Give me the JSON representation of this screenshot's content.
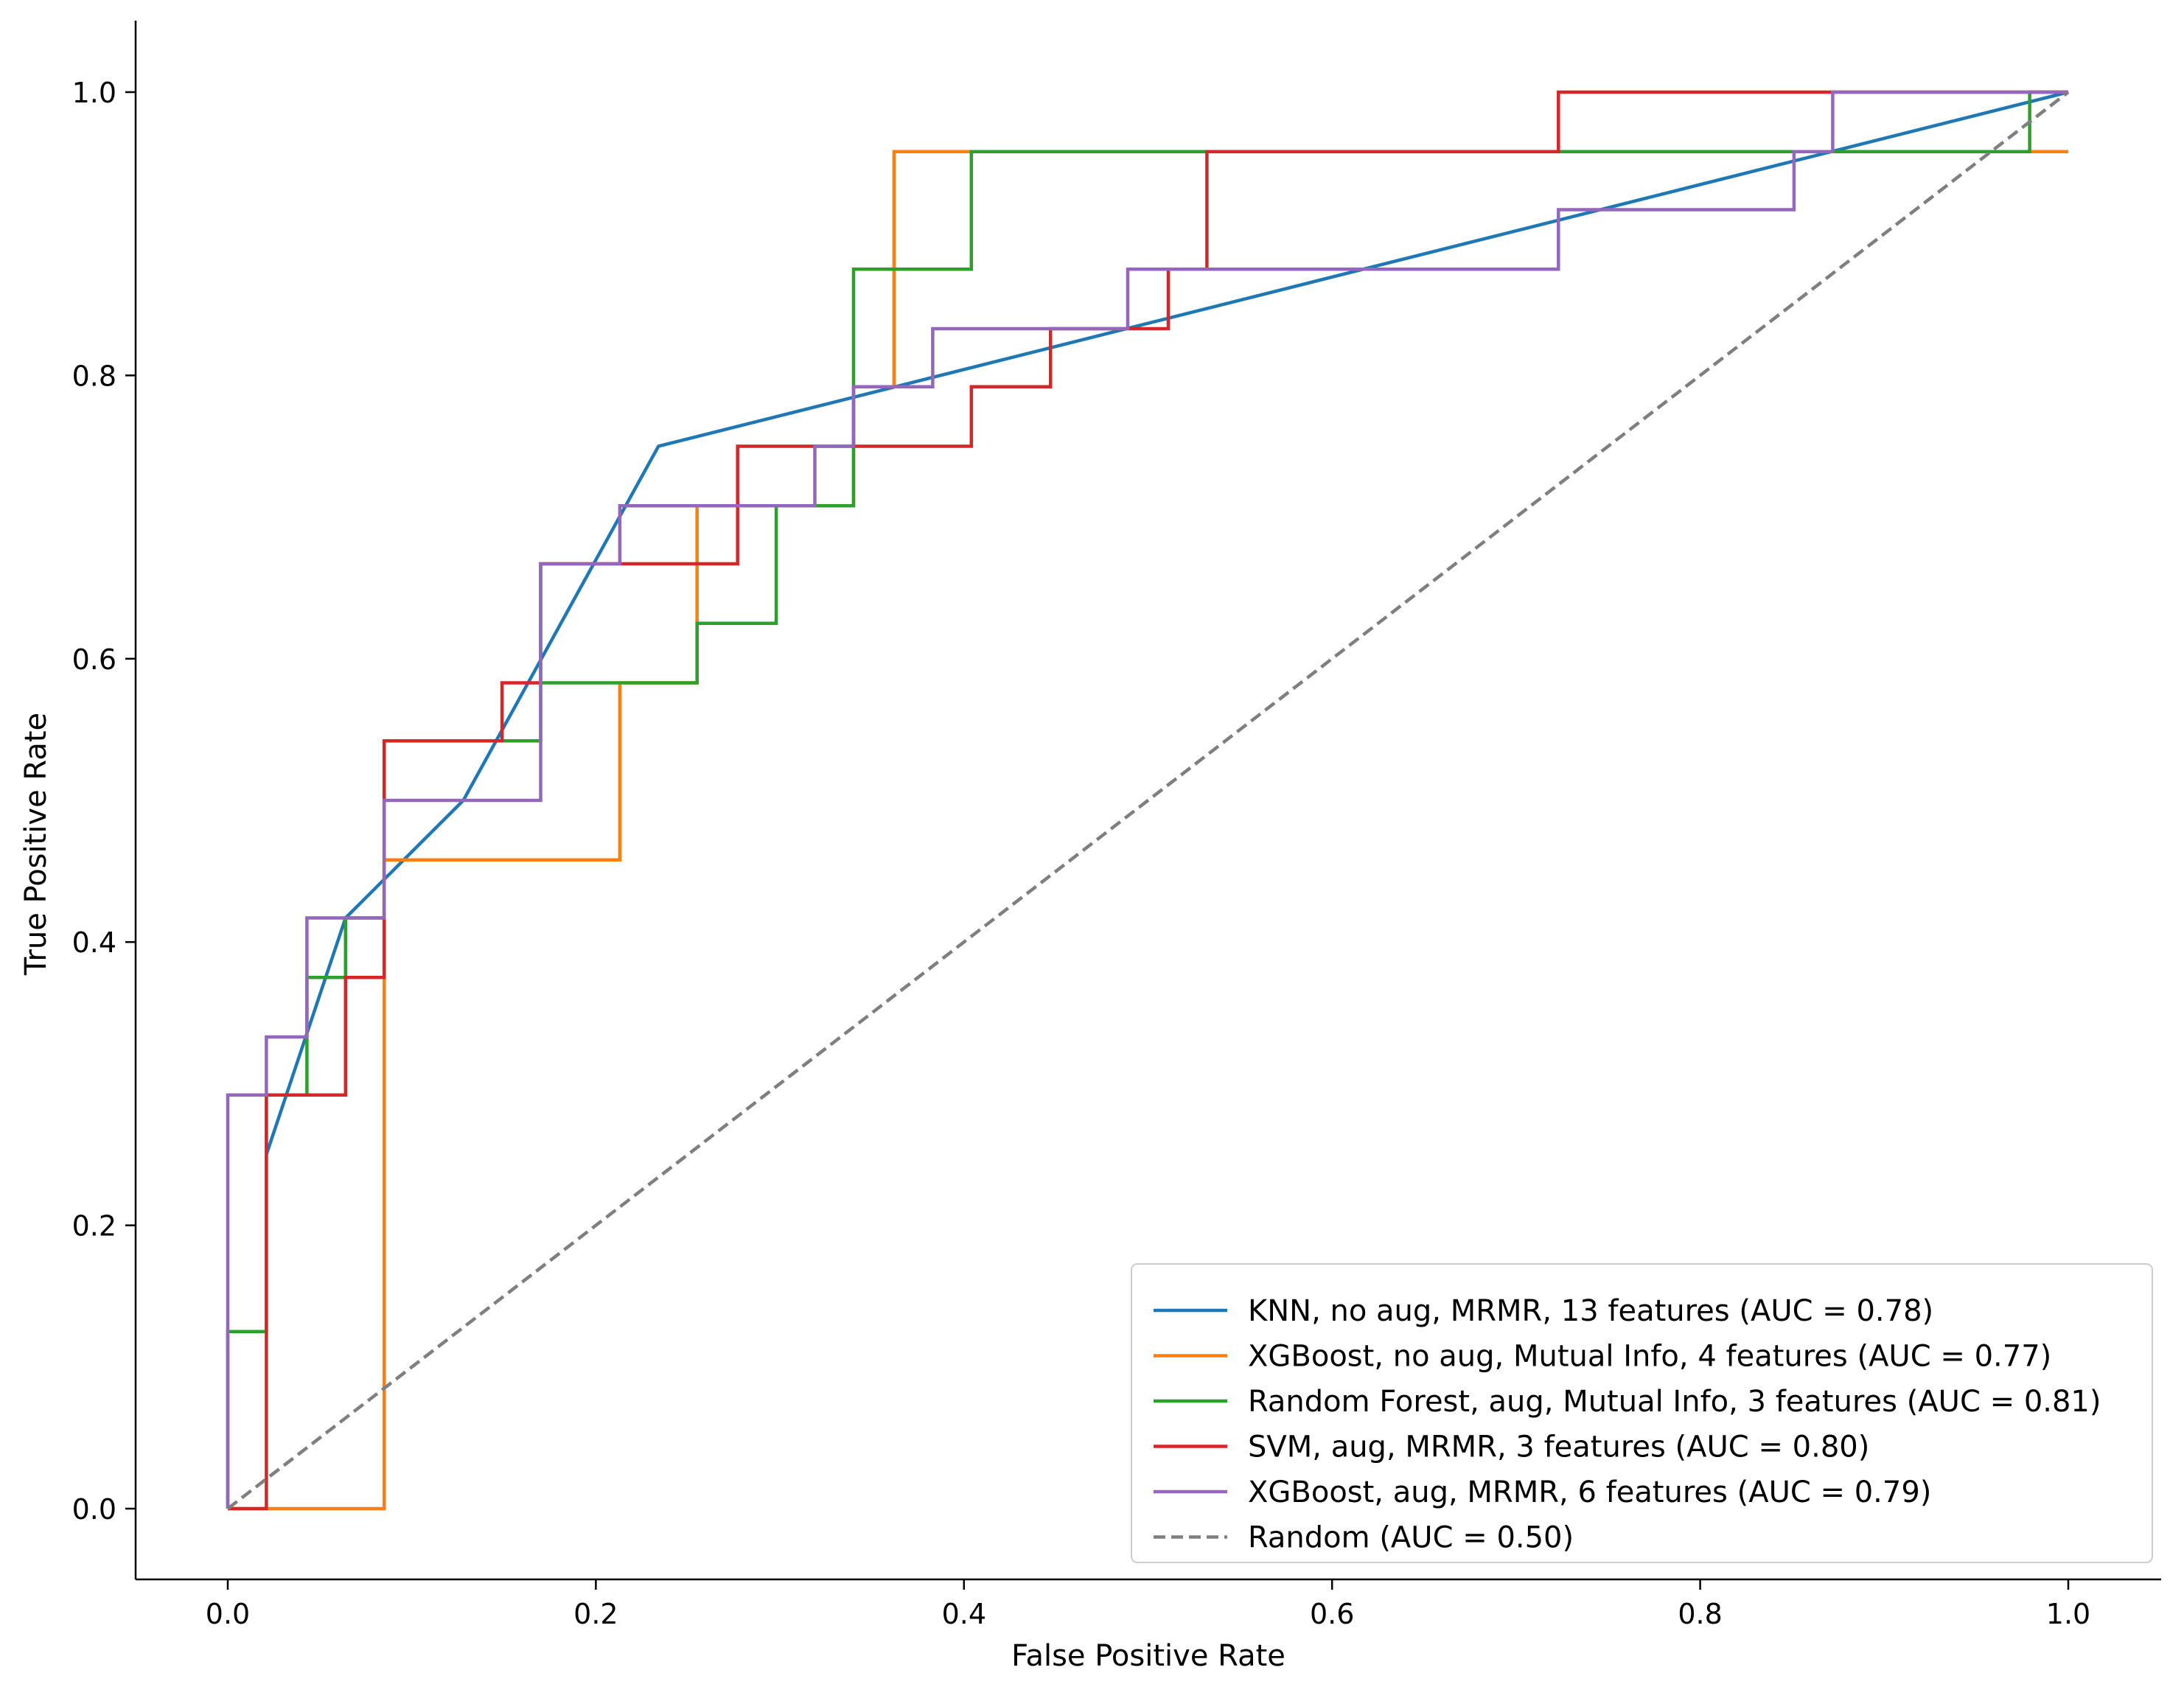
{
  "chart_data": {
    "type": "line",
    "title": "",
    "xlabel": "False Positive Rate",
    "ylabel": "True Positive Rate",
    "xlim": [
      -0.05,
      1.05
    ],
    "ylim": [
      -0.05,
      1.05
    ],
    "x_ticks": [
      0.0,
      0.2,
      0.4,
      0.6,
      0.8,
      1.0
    ],
    "y_ticks": [
      0.0,
      0.2,
      0.4,
      0.6,
      0.8,
      1.0
    ],
    "x_tick_labels": [
      "0.0",
      "0.2",
      "0.4",
      "0.6",
      "0.8",
      "1.0"
    ],
    "y_tick_labels": [
      "0.0",
      "0.2",
      "0.4",
      "0.6",
      "0.8",
      "1.0"
    ],
    "grid": false,
    "legend_position": "lower-right",
    "series": [
      {
        "name": "KNN, no aug, MRMR, 13 features (AUC = 0.78)",
        "color": "#1f77b4",
        "dash": "solid",
        "points": [
          [
            0.021,
            0.25
          ],
          [
            0.064,
            0.417
          ],
          [
            0.128,
            0.5
          ],
          [
            0.234,
            0.75
          ],
          [
            1.0,
            1.0
          ]
        ]
      },
      {
        "name": "XGBoost, no aug, Mutual Info, 4 features (AUC = 0.77)",
        "color": "#ff7f0e",
        "dash": "solid",
        "points": [
          [
            0.0,
            0.0
          ],
          [
            0.085,
            0.0
          ],
          [
            0.085,
            0.458
          ],
          [
            0.213,
            0.458
          ],
          [
            0.213,
            0.583
          ],
          [
            0.255,
            0.583
          ],
          [
            0.255,
            0.708
          ],
          [
            0.34,
            0.708
          ],
          [
            0.34,
            0.792
          ],
          [
            0.362,
            0.792
          ],
          [
            0.362,
            0.958
          ],
          [
            1.0,
            0.958
          ]
        ]
      },
      {
        "name": "Random Forest, aug, Mutual Info, 3 features (AUC = 0.81)",
        "color": "#2ca02c",
        "dash": "solid",
        "points": [
          [
            0.0,
            0.0
          ],
          [
            0.0,
            0.125
          ],
          [
            0.021,
            0.125
          ],
          [
            0.021,
            0.292
          ],
          [
            0.043,
            0.292
          ],
          [
            0.043,
            0.375
          ],
          [
            0.064,
            0.375
          ],
          [
            0.064,
            0.417
          ],
          [
            0.085,
            0.417
          ],
          [
            0.085,
            0.542
          ],
          [
            0.17,
            0.542
          ],
          [
            0.17,
            0.583
          ],
          [
            0.255,
            0.583
          ],
          [
            0.255,
            0.625
          ],
          [
            0.298,
            0.625
          ],
          [
            0.298,
            0.708
          ],
          [
            0.34,
            0.708
          ],
          [
            0.34,
            0.875
          ],
          [
            0.404,
            0.875
          ],
          [
            0.404,
            0.958
          ],
          [
            0.979,
            0.958
          ],
          [
            0.979,
            1.0
          ],
          [
            1.0,
            1.0
          ]
        ]
      },
      {
        "name": "SVM, aug, MRMR, 3 features (AUC = 0.80)",
        "color": "#d62728",
        "dash": "solid",
        "points": [
          [
            0.0,
            0.0
          ],
          [
            0.021,
            0.0
          ],
          [
            0.021,
            0.292
          ],
          [
            0.064,
            0.292
          ],
          [
            0.064,
            0.375
          ],
          [
            0.085,
            0.375
          ],
          [
            0.085,
            0.542
          ],
          [
            0.149,
            0.542
          ],
          [
            0.149,
            0.583
          ],
          [
            0.17,
            0.583
          ],
          [
            0.17,
            0.667
          ],
          [
            0.277,
            0.667
          ],
          [
            0.277,
            0.75
          ],
          [
            0.404,
            0.75
          ],
          [
            0.404,
            0.792
          ],
          [
            0.447,
            0.792
          ],
          [
            0.447,
            0.833
          ],
          [
            0.511,
            0.833
          ],
          [
            0.511,
            0.875
          ],
          [
            0.532,
            0.875
          ],
          [
            0.532,
            0.958
          ],
          [
            0.723,
            0.958
          ],
          [
            0.723,
            1.0
          ],
          [
            1.0,
            1.0
          ]
        ]
      },
      {
        "name": "XGBoost, aug, MRMR, 6 features (AUC = 0.79)",
        "color": "#9467bd",
        "dash": "solid",
        "points": [
          [
            0.0,
            0.0
          ],
          [
            0.0,
            0.292
          ],
          [
            0.021,
            0.292
          ],
          [
            0.021,
            0.333
          ],
          [
            0.043,
            0.333
          ],
          [
            0.043,
            0.417
          ],
          [
            0.085,
            0.417
          ],
          [
            0.085,
            0.5
          ],
          [
            0.17,
            0.5
          ],
          [
            0.17,
            0.667
          ],
          [
            0.213,
            0.667
          ],
          [
            0.213,
            0.708
          ],
          [
            0.319,
            0.708
          ],
          [
            0.319,
            0.75
          ],
          [
            0.34,
            0.75
          ],
          [
            0.34,
            0.792
          ],
          [
            0.383,
            0.792
          ],
          [
            0.383,
            0.833
          ],
          [
            0.489,
            0.833
          ],
          [
            0.489,
            0.875
          ],
          [
            0.723,
            0.875
          ],
          [
            0.723,
            0.917
          ],
          [
            0.851,
            0.917
          ],
          [
            0.851,
            0.958
          ],
          [
            0.872,
            0.958
          ],
          [
            0.872,
            1.0
          ],
          [
            1.0,
            1.0
          ]
        ]
      },
      {
        "name": "Random (AUC = 0.50)",
        "color": "#7f7f7f",
        "dash": "dashed",
        "points": [
          [
            0.0,
            0.0
          ],
          [
            1.0,
            1.0
          ]
        ]
      }
    ]
  }
}
